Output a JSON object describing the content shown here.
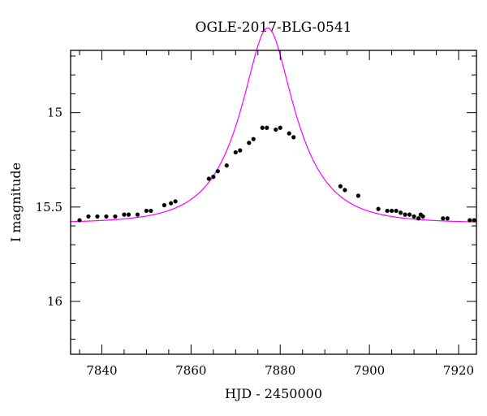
{
  "chart_data": {
    "type": "scatter",
    "title": "OGLE-2017-BLG-0541",
    "xlabel": "HJD - 2450000",
    "ylabel": "I magnitude",
    "xlim": [
      7833,
      7924
    ],
    "ylim": [
      16.28,
      14.67
    ],
    "y_inverted": true,
    "x_ticks": [
      7840,
      7860,
      7880,
      7900,
      7920
    ],
    "x_tick_labels": [
      "7840",
      "7860",
      "7880",
      "7900",
      "7920"
    ],
    "y_ticks": [
      15,
      15.5,
      16
    ],
    "y_tick_labels": [
      "15",
      "15.5",
      "16"
    ],
    "grid": false,
    "legend": "none",
    "colors": {
      "points": "#000000",
      "model": "#ff00ff"
    },
    "series": [
      {
        "kind": "points",
        "x": [
          7835.0,
          7837.0,
          7839.0,
          7841.0,
          7843.0,
          7845.0,
          7846.0,
          7848.0,
          7850.0,
          7851.0,
          7854.0,
          7855.5,
          7856.5,
          7864.0,
          7865.0,
          7866.0,
          7868.0,
          7870.0,
          7871.0,
          7873.0,
          7874.0,
          7876.0,
          7877.0,
          7879.0,
          7880.0,
          7882.0,
          7883.0,
          7893.5,
          7894.5,
          7897.5,
          7902.0,
          7904.0,
          7905.0,
          7906.0,
          7907.0,
          7908.0,
          7909.0,
          7910.0,
          7911.0,
          7911.5,
          7912.0,
          7916.5,
          7917.5,
          7922.5,
          7923.5
        ],
        "y": [
          15.57,
          15.55,
          15.55,
          15.55,
          15.55,
          15.54,
          15.54,
          15.54,
          15.52,
          15.52,
          15.49,
          15.48,
          15.47,
          15.35,
          15.34,
          15.31,
          15.28,
          15.21,
          15.2,
          15.16,
          15.14,
          15.08,
          15.08,
          15.09,
          15.08,
          15.11,
          15.13,
          15.39,
          15.41,
          15.44,
          15.51,
          15.52,
          15.52,
          15.52,
          15.53,
          15.54,
          15.54,
          15.55,
          15.56,
          15.54,
          15.55,
          15.56,
          15.56,
          15.57,
          15.57
        ]
      },
      {
        "kind": "model",
        "model": "pspl",
        "params": {
          "t0": 7877.2,
          "tE": 11.5,
          "u0": 0.41,
          "I_base": 15.585
        }
      }
    ]
  }
}
